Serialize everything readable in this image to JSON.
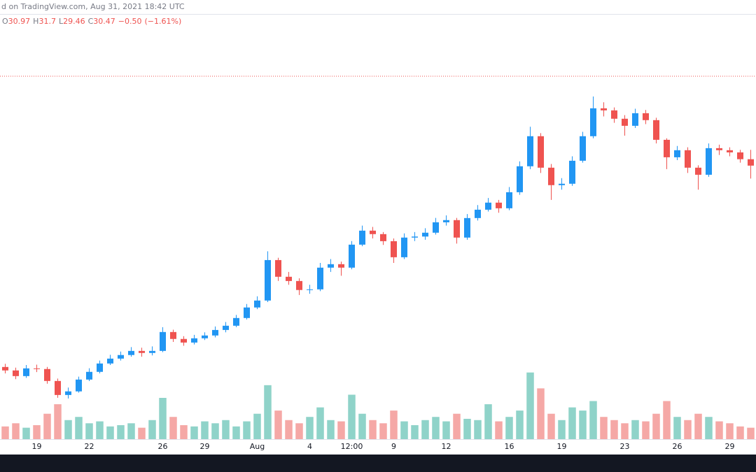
{
  "header": {
    "text": "d on TradingView.com, Aug 31, 2021 18:42 UTC"
  },
  "chart_data": {
    "type": "candlestick",
    "categories": [
      null,
      null,
      null,
      "19",
      null,
      null,
      null,
      null,
      "22",
      null,
      null,
      null,
      null,
      null,
      null,
      "26",
      null,
      null,
      null,
      "29",
      null,
      null,
      null,
      null,
      "Aug",
      null,
      null,
      null,
      null,
      "4",
      null,
      null,
      null,
      "12:00",
      null,
      null,
      null,
      "9",
      null,
      null,
      null,
      null,
      "12",
      null,
      null,
      null,
      null,
      null,
      "16",
      null,
      null,
      null,
      null,
      "19",
      null,
      null,
      null,
      null,
      null,
      "23",
      null,
      null,
      null,
      null,
      "26",
      null,
      null,
      null,
      null,
      "29",
      null,
      null
    ],
    "open": [
      14.8,
      14.53,
      14.09,
      14.69,
      14.64,
      13.71,
      12.62,
      12.9,
      13.82,
      14.42,
      15.07,
      15.45,
      15.73,
      16.05,
      15.89,
      16.05,
      17.52,
      16.98,
      16.7,
      17.03,
      17.25,
      17.68,
      18.01,
      18.61,
      19.43,
      19.97,
      23.12,
      21.82,
      21.49,
      20.79,
      20.84,
      22.53,
      22.8,
      22.53,
      24.32,
      25.41,
      25.14,
      24.59,
      23.34,
      24.87,
      24.95,
      25.25,
      26.06,
      26.23,
      24.87,
      26.39,
      27.04,
      27.59,
      27.15,
      28.4,
      30.42,
      32.76,
      30.31,
      28.95,
      29.06,
      30.85,
      32.76,
      34.93,
      34.77,
      34.12,
      33.57,
      34.55,
      34.01,
      32.48,
      31.12,
      31.67,
      30.31,
      29.76,
      31.83,
      31.67,
      31.5,
      30.97
    ],
    "high": [
      15.05,
      14.75,
      14.95,
      14.98,
      14.8,
      13.9,
      13.2,
      14.05,
      14.7,
      15.3,
      15.75,
      16.0,
      16.35,
      16.3,
      16.4,
      17.9,
      17.7,
      17.2,
      17.3,
      17.5,
      17.95,
      18.3,
      18.85,
      19.7,
      20.3,
      23.8,
      23.3,
      22.2,
      21.7,
      21.2,
      22.9,
      23.2,
      23.0,
      24.6,
      25.8,
      25.7,
      25.3,
      24.8,
      25.2,
      25.3,
      25.6,
      26.4,
      26.6,
      26.4,
      26.7,
      27.4,
      27.95,
      27.8,
      28.8,
      30.8,
      33.5,
      33.0,
      30.6,
      29.5,
      31.2,
      33.1,
      35.85,
      35.4,
      35.0,
      34.4,
      34.9,
      34.8,
      34.2,
      32.6,
      32.0,
      31.9,
      30.5,
      32.2,
      32.1,
      31.9,
      31.7,
      31.7
    ],
    "low": [
      14.3,
      13.85,
      13.95,
      14.4,
      13.5,
      12.4,
      12.35,
      12.8,
      13.7,
      14.3,
      14.95,
      15.3,
      15.6,
      15.6,
      15.7,
      15.95,
      16.75,
      16.45,
      16.55,
      16.9,
      17.1,
      17.5,
      17.9,
      18.5,
      19.3,
      19.85,
      21.5,
      21.2,
      20.4,
      20.5,
      20.7,
      22.2,
      21.9,
      22.4,
      24.2,
      24.8,
      24.3,
      22.9,
      23.2,
      24.6,
      24.7,
      25.1,
      25.8,
      24.4,
      24.7,
      26.2,
      26.9,
      26.8,
      27.0,
      28.2,
      30.2,
      29.9,
      27.8,
      28.6,
      28.9,
      30.7,
      32.6,
      34.3,
      33.8,
      32.8,
      33.4,
      33.7,
      32.2,
      30.2,
      30.9,
      29.9,
      28.6,
      29.6,
      31.3,
      31.2,
      30.7,
      29.46
    ],
    "close": [
      14.53,
      14.09,
      14.69,
      14.64,
      13.71,
      12.62,
      12.9,
      13.82,
      14.42,
      15.07,
      15.45,
      15.73,
      16.05,
      15.89,
      16.05,
      17.52,
      16.98,
      16.7,
      17.03,
      17.25,
      17.68,
      18.01,
      18.61,
      19.43,
      19.97,
      23.12,
      21.82,
      21.49,
      20.79,
      20.84,
      22.53,
      22.8,
      22.53,
      24.32,
      25.41,
      25.14,
      24.59,
      23.34,
      24.87,
      24.95,
      25.25,
      26.06,
      26.23,
      24.87,
      26.39,
      27.04,
      27.59,
      27.15,
      28.4,
      30.42,
      32.76,
      30.31,
      28.95,
      29.06,
      30.85,
      32.76,
      34.93,
      34.77,
      34.12,
      33.57,
      34.55,
      34.01,
      32.48,
      31.12,
      31.67,
      30.31,
      29.76,
      31.83,
      31.67,
      31.5,
      30.97,
      30.47
    ],
    "volume": [
      20,
      25,
      18,
      22,
      40,
      55,
      30,
      35,
      25,
      28,
      20,
      22,
      25,
      18,
      30,
      65,
      35,
      22,
      20,
      28,
      25,
      30,
      20,
      28,
      40,
      85,
      45,
      30,
      25,
      35,
      50,
      30,
      28,
      70,
      40,
      30,
      25,
      45,
      28,
      22,
      30,
      35,
      28,
      40,
      32,
      30,
      55,
      28,
      35,
      45,
      105,
      80,
      40,
      30,
      50,
      45,
      60,
      35,
      30,
      25,
      30,
      28,
      40,
      60,
      35,
      30,
      40,
      35,
      28,
      25,
      20,
      18
    ],
    "up_color": "#2196f3",
    "down_color": "#ef5350",
    "volume_up_color": "#8fd3c9",
    "volume_down_color": "#f5a8a6",
    "ylim": [
      10,
      42
    ],
    "volume_ylim": [
      0,
      130
    ],
    "price_line": 37.43,
    "legend": {
      "labels": [
        "O",
        "H",
        "L",
        "C"
      ],
      "change": {
        "value": -0.5,
        "label": "−0.50"
      },
      "change_pct": {
        "value": -1.61,
        "label": "(−1.61%)"
      }
    }
  }
}
